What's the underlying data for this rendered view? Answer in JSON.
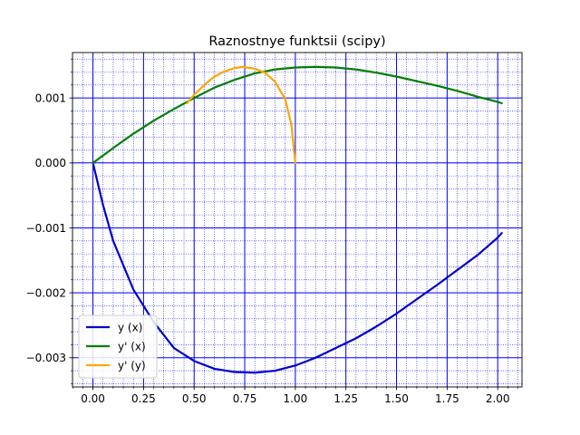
{
  "chart_data": {
    "type": "line",
    "title": "Raznostnye funktsii (scipy)",
    "xlabel": "",
    "ylabel": "",
    "xlim": [
      -0.101,
      2.12
    ],
    "ylim": [
      -0.00345,
      0.0017
    ],
    "x_ticks": [
      0.0,
      0.25,
      0.5,
      0.75,
      1.0,
      1.25,
      1.5,
      1.75,
      2.0
    ],
    "x_tick_labels": [
      "0.00",
      "0.25",
      "0.50",
      "0.75",
      "1.00",
      "1.25",
      "1.50",
      "1.75",
      "2.00"
    ],
    "y_ticks": [
      -0.003,
      -0.002,
      -0.001,
      0.0,
      0.001
    ],
    "y_tick_labels": [
      "−0.003",
      "−0.002",
      "−0.001",
      "0.000",
      "0.001"
    ],
    "grid": {
      "major": true,
      "minor": true,
      "color": "#0000ff"
    },
    "legend_position": "lower-left",
    "series": [
      {
        "name": "y (x)",
        "color": "#0000cc",
        "x": [
          0.0,
          0.05,
          0.1,
          0.2,
          0.3,
          0.4,
          0.5,
          0.6,
          0.7,
          0.8,
          0.9,
          1.0,
          1.1,
          1.2,
          1.3,
          1.4,
          1.5,
          1.6,
          1.7,
          1.8,
          1.9,
          2.0,
          2.02
        ],
        "y": [
          0.0,
          -0.00065,
          -0.0012,
          -0.00195,
          -0.00245,
          -0.00285,
          -0.00305,
          -0.00317,
          -0.00322,
          -0.00323,
          -0.0032,
          -0.00312,
          -0.003,
          -0.00285,
          -0.0027,
          -0.00252,
          -0.00232,
          -0.0021,
          -0.00188,
          -0.00165,
          -0.00142,
          -0.00115,
          -0.00108
        ]
      },
      {
        "name": "y' (x)",
        "color": "#008000",
        "x": [
          0.0,
          0.1,
          0.2,
          0.3,
          0.4,
          0.5,
          0.6,
          0.7,
          0.8,
          0.9,
          1.0,
          1.1,
          1.2,
          1.3,
          1.4,
          1.5,
          1.6,
          1.7,
          1.8,
          1.9,
          2.0,
          2.02
        ],
        "y": [
          0.0,
          0.00023,
          0.00045,
          0.00065,
          0.00083,
          0.001,
          0.00116,
          0.00128,
          0.00138,
          0.00144,
          0.00147,
          0.00148,
          0.00147,
          0.00144,
          0.00139,
          0.00133,
          0.00126,
          0.00119,
          0.00111,
          0.00102,
          0.00094,
          0.00092
        ]
      },
      {
        "name": "y' (y)",
        "color": "#ffa500",
        "x": [
          0.465,
          0.5,
          0.55,
          0.6,
          0.65,
          0.7,
          0.74,
          0.8,
          0.85,
          0.9,
          0.95,
          0.98,
          1.0
        ],
        "y": [
          0.00092,
          0.00105,
          0.0012,
          0.00133,
          0.00141,
          0.00146,
          0.00148,
          0.00145,
          0.00139,
          0.00125,
          0.00098,
          0.0006,
          0.0
        ]
      }
    ]
  }
}
